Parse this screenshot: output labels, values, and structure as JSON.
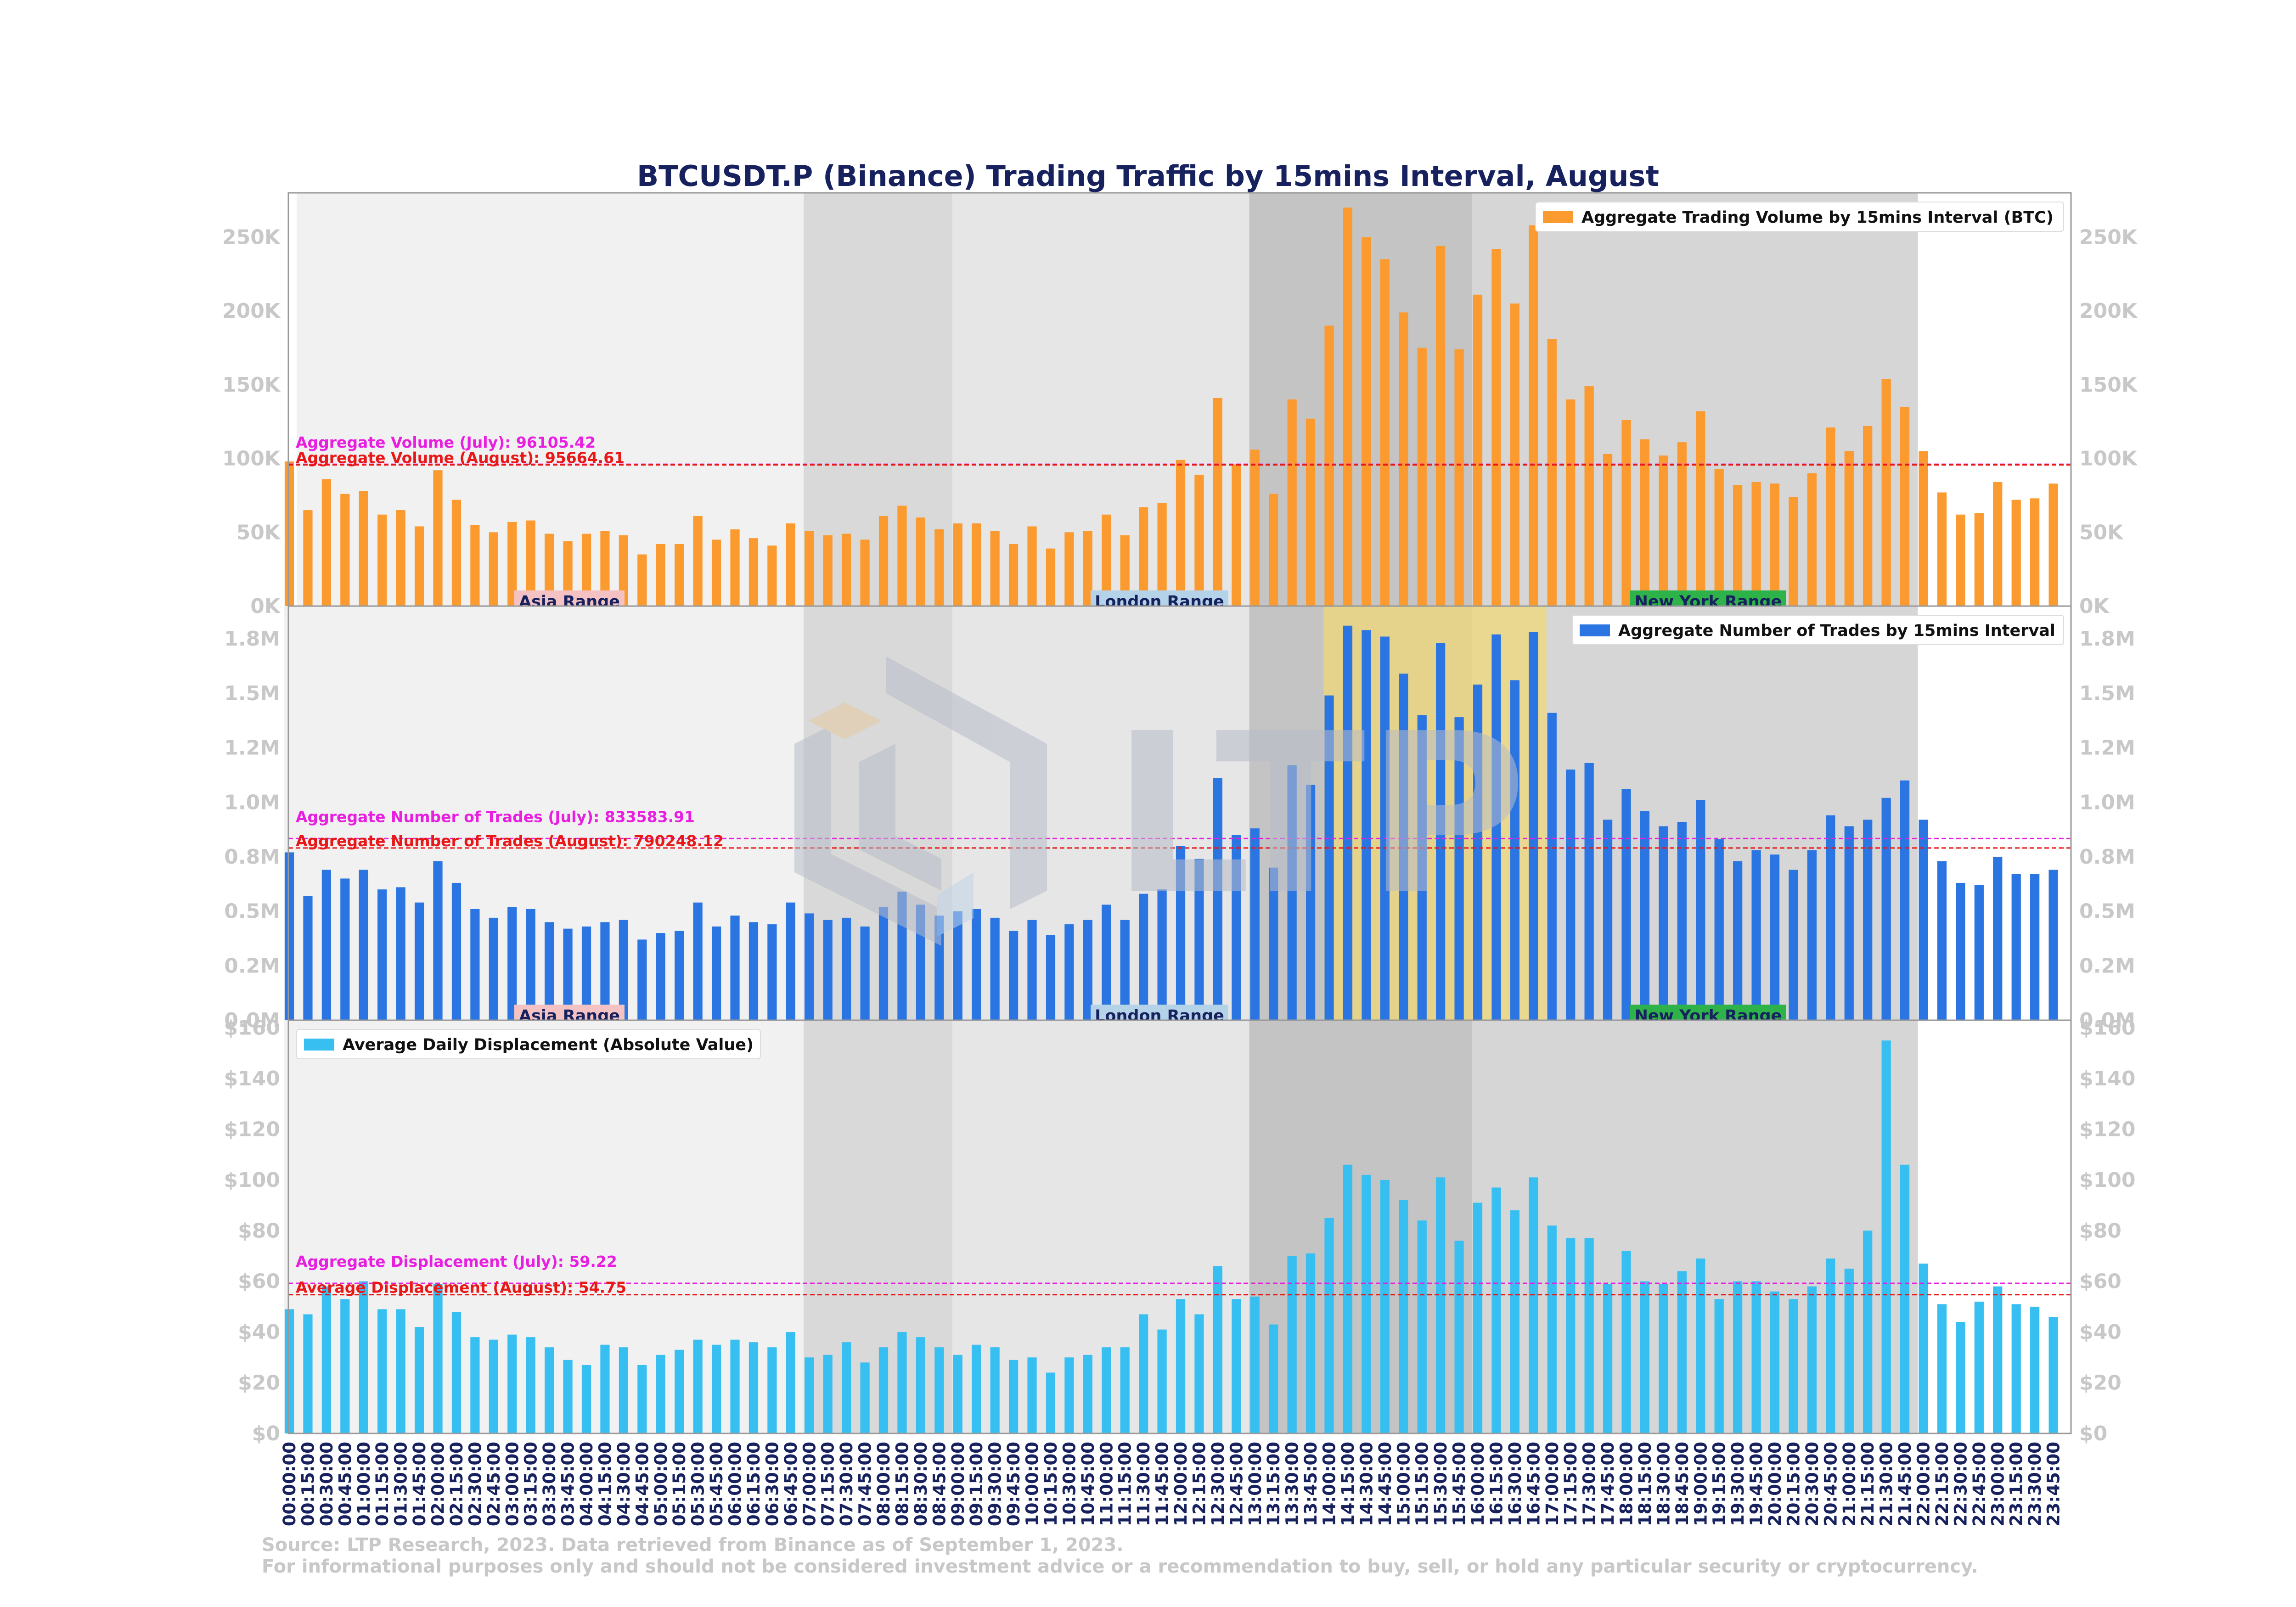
{
  "chart_data": {
    "title": "BTCUSDT.P (Binance) Trading Traffic by 15mins Interval, August",
    "x_tick_labels": [
      "00:00:00",
      "00:15:00",
      "00:30:00",
      "00:45:00",
      "01:00:00",
      "01:15:00",
      "01:30:00",
      "01:45:00",
      "02:00:00",
      "02:15:00",
      "02:30:00",
      "02:45:00",
      "03:00:00",
      "03:15:00",
      "03:30:00",
      "03:45:00",
      "04:00:00",
      "04:15:00",
      "04:30:00",
      "04:45:00",
      "05:00:00",
      "05:15:00",
      "05:30:00",
      "05:45:00",
      "06:00:00",
      "06:15:00",
      "06:30:00",
      "06:45:00",
      "07:00:00",
      "07:15:00",
      "07:30:00",
      "07:45:00",
      "08:00:00",
      "08:15:00",
      "08:30:00",
      "08:45:00",
      "09:00:00",
      "09:15:00",
      "09:30:00",
      "09:45:00",
      "10:00:00",
      "10:15:00",
      "10:30:00",
      "10:45:00",
      "11:00:00",
      "11:15:00",
      "11:30:00",
      "11:45:00",
      "12:00:00",
      "12:15:00",
      "12:30:00",
      "12:45:00",
      "13:00:00",
      "13:15:00",
      "13:30:00",
      "13:45:00",
      "14:00:00",
      "14:15:00",
      "14:30:00",
      "14:45:00",
      "15:00:00",
      "15:15:00",
      "15:30:00",
      "15:45:00",
      "16:00:00",
      "16:15:00",
      "16:30:00",
      "16:45:00",
      "17:00:00",
      "17:15:00",
      "17:30:00",
      "17:45:00",
      "18:00:00",
      "18:15:00",
      "18:30:00",
      "18:45:00",
      "19:00:00",
      "19:15:00",
      "19:30:00",
      "19:45:00",
      "20:00:00",
      "20:15:00",
      "20:30:00",
      "20:45:00",
      "21:00:00",
      "21:15:00",
      "21:30:00",
      "21:45:00",
      "22:00:00",
      "22:15:00",
      "22:30:00",
      "22:45:00",
      "23:00:00",
      "23:15:00",
      "23:30:00",
      "23:45:00"
    ],
    "regions": {
      "asia": {
        "label": "Asia Range",
        "start": "00:00:00",
        "end": "09:00:00",
        "color": "#f1f1f1",
        "label_color": "#f4c2c2"
      },
      "london": {
        "label": "London Range",
        "start": "07:00:00",
        "end": "16:00:00",
        "color": "#e4e4e4",
        "label_color": "#b4d2e8"
      },
      "newyork": {
        "label": "New York Range",
        "start": "13:00:00",
        "end": "22:00:00",
        "color": "#d8d8d8",
        "label_color": "#2db34a"
      },
      "overlap_dark": {
        "start": "13:00:00",
        "end": "16:00:00",
        "color": "#c4c4c4"
      },
      "highlight": {
        "start": "14:00:00",
        "end": "17:00:00",
        "color": "#f0d878"
      }
    },
    "panels": [
      {
        "type": "bar",
        "color": "#fb9a2e",
        "legend": "Aggregate Trading Volume by 15mins Interval (BTC)",
        "legend_position": "top-right",
        "ylim": [
          0,
          280000
        ],
        "yticks": [
          0,
          50000,
          100000,
          150000,
          200000,
          250000
        ],
        "ytick_labels": [
          "0K",
          "50K",
          "100K",
          "150K",
          "200K",
          "250K"
        ],
        "values": [
          98000,
          65000,
          86000,
          76000,
          78000,
          62000,
          65000,
          54000,
          92000,
          72000,
          55000,
          50000,
          57000,
          58000,
          49000,
          44000,
          49000,
          51000,
          48000,
          35000,
          42000,
          42000,
          61000,
          45000,
          52000,
          46000,
          41000,
          56000,
          51000,
          48000,
          49000,
          45000,
          61000,
          68000,
          60000,
          52000,
          56000,
          56000,
          51000,
          42000,
          54000,
          39000,
          50000,
          51000,
          62000,
          48000,
          67000,
          70000,
          99000,
          89000,
          141000,
          96000,
          106000,
          76000,
          140000,
          127000,
          190000,
          270000,
          250000,
          235000,
          199000,
          175000,
          244000,
          174000,
          211000,
          242000,
          205000,
          258000,
          181000,
          140000,
          149000,
          103000,
          126000,
          113000,
          102000,
          111000,
          132000,
          93000,
          82000,
          84000,
          83000,
          74000,
          90000,
          121000,
          105000,
          122000,
          154000,
          135000,
          105000,
          77000,
          62000,
          63000,
          84000,
          72000,
          73000,
          83000
        ],
        "reference_lines": [
          {
            "label": "Aggregate Volume (July): 96105.42",
            "value": 96105.42,
            "color": "#e81ee0"
          },
          {
            "label": "Aggregate Volume (August): 95664.61",
            "value": 95664.61,
            "color": "#e81818"
          }
        ]
      },
      {
        "type": "bar",
        "color": "#2a75e2",
        "legend": "Aggregate Number of Trades by 15mins Interval",
        "legend_position": "top-right",
        "ylim": [
          0,
          1900000
        ],
        "yticks": [
          0,
          250000,
          500000,
          750000,
          1000000,
          1250000,
          1500000,
          1750000
        ],
        "ytick_labels": [
          "0.0M",
          "0.2M",
          "0.5M",
          "0.8M",
          "1.0M",
          "1.2M",
          "1.5M",
          "1.8M"
        ],
        "values": [
          770000,
          570000,
          690000,
          650000,
          690000,
          600000,
          610000,
          540000,
          730000,
          630000,
          510000,
          470000,
          520000,
          510000,
          450000,
          420000,
          430000,
          450000,
          460000,
          370000,
          400000,
          410000,
          540000,
          430000,
          480000,
          450000,
          440000,
          540000,
          490000,
          460000,
          470000,
          430000,
          520000,
          590000,
          530000,
          480000,
          500000,
          510000,
          470000,
          410000,
          460000,
          390000,
          440000,
          460000,
          530000,
          460000,
          580000,
          600000,
          800000,
          740000,
          1110000,
          850000,
          880000,
          700000,
          1170000,
          1080000,
          1490000,
          1810000,
          1790000,
          1760000,
          1590000,
          1400000,
          1730000,
          1390000,
          1540000,
          1770000,
          1560000,
          1780000,
          1410000,
          1150000,
          1180000,
          920000,
          1060000,
          960000,
          890000,
          910000,
          1010000,
          830000,
          730000,
          780000,
          760000,
          690000,
          780000,
          940000,
          890000,
          920000,
          1020000,
          1100000,
          920000,
          730000,
          630000,
          620000,
          750000,
          670000,
          670000,
          690000
        ],
        "reference_lines": [
          {
            "label": "Aggregate Number of Trades (July): 833583.91",
            "value": 833583.91,
            "color": "#e81ee0"
          },
          {
            "label": "Aggregate Number of Trades (August): 790248.12",
            "value": 790248.12,
            "color": "#e81818"
          }
        ]
      },
      {
        "type": "bar",
        "color": "#37bff2",
        "legend": "Average Daily Displacement (Absolute Value)",
        "legend_position": "top-left",
        "ylim": [
          0,
          163
        ],
        "yticks": [
          0,
          20,
          40,
          60,
          80,
          100,
          120,
          140,
          160
        ],
        "ytick_labels": [
          "$0",
          "$20",
          "$40",
          "$60",
          "$80",
          "$100",
          "$120",
          "$140",
          "$160"
        ],
        "values": [
          49,
          47,
          58,
          53,
          60,
          49,
          49,
          42,
          59,
          48,
          38,
          37,
          39,
          38,
          34,
          29,
          27,
          35,
          34,
          27,
          31,
          33,
          37,
          35,
          37,
          36,
          34,
          40,
          30,
          31,
          36,
          28,
          34,
          40,
          38,
          34,
          31,
          35,
          34,
          29,
          30,
          24,
          30,
          31,
          34,
          34,
          47,
          41,
          53,
          47,
          66,
          53,
          54,
          43,
          70,
          71,
          85,
          106,
          102,
          100,
          92,
          84,
          101,
          76,
          91,
          97,
          88,
          101,
          82,
          77,
          77,
          59,
          72,
          60,
          59,
          64,
          69,
          53,
          60,
          60,
          56,
          53,
          58,
          69,
          65,
          80,
          155,
          106,
          67,
          51,
          44,
          52,
          58,
          51,
          50,
          46
        ],
        "reference_lines": [
          {
            "label": "Aggregate Displacement (July): 59.22",
            "value": 59.22,
            "color": "#e81ee0"
          },
          {
            "label": "Average Displacement (August): 54.75",
            "value": 54.75,
            "color": "#e81818"
          }
        ]
      }
    ],
    "footer_lines": [
      "Source: LTP Research, 2023. Data retrieved from Binance as of September 1, 2023.",
      "For informational purposes only and should not be considered investment advice or a recommendation to buy, sell, or hold any particular security or cryptocurrency."
    ],
    "watermark": "LTP"
  }
}
